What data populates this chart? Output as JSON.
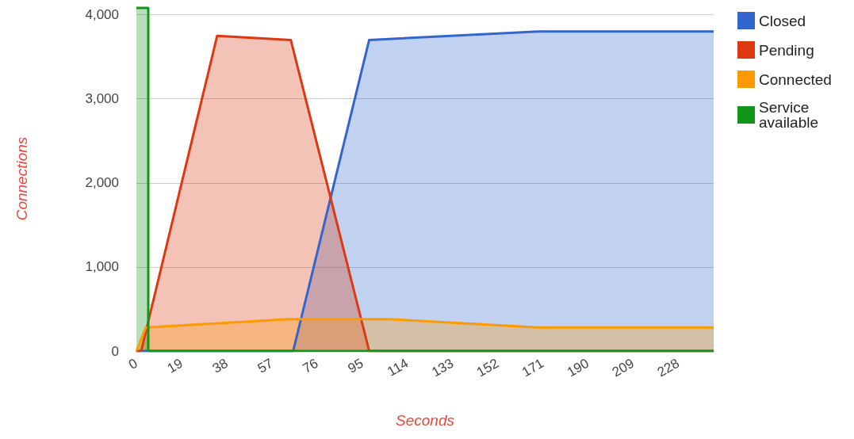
{
  "chart_data": {
    "type": "area",
    "xlabel": "Seconds",
    "ylabel": "Connections",
    "xlim": [
      0,
      243
    ],
    "xticks": [
      0,
      19,
      38,
      57,
      76,
      95,
      114,
      133,
      152,
      171,
      190,
      209,
      228
    ],
    "ylim": [
      0,
      4100
    ],
    "yticks": [
      {
        "value": 0,
        "label": "0"
      },
      {
        "value": 1000,
        "label": "1,000"
      },
      {
        "value": 2000,
        "label": "2,000"
      },
      {
        "value": 3000,
        "label": "3,000"
      },
      {
        "value": 4000,
        "label": "4,000"
      }
    ],
    "grid": "y",
    "legend": "top right",
    "marker": "none",
    "series": [
      {
        "name": "Closed",
        "color": "#3366cc",
        "x": [
          0,
          66,
          98,
          169,
          243
        ],
        "values": [
          0,
          0,
          3700,
          3800,
          3800
        ]
      },
      {
        "name": "Pending",
        "color": "#dc3912",
        "x": [
          0,
          2,
          34,
          65,
          98,
          243
        ],
        "values": [
          0,
          0,
          3750,
          3700,
          0,
          0
        ]
      },
      {
        "name": "Connected",
        "color": "#ff9900",
        "x": [
          0,
          4,
          64,
          106,
          169,
          243
        ],
        "values": [
          0,
          280,
          380,
          380,
          280,
          280
        ]
      },
      {
        "name": "Service available",
        "color": "#109618",
        "x": [
          0,
          5,
          5,
          243
        ],
        "values": [
          4080,
          4080,
          0,
          0
        ]
      }
    ]
  }
}
